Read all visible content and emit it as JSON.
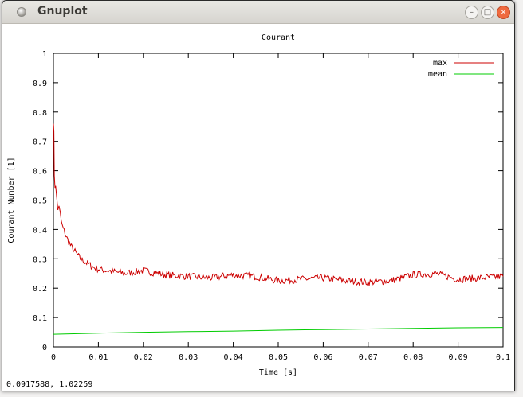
{
  "window": {
    "title": "Gnuplot"
  },
  "status": {
    "coordinates": "0.0917588,  1.02259"
  },
  "colors": {
    "max": "#cc0000",
    "mean": "#00cc00"
  },
  "chart_data": {
    "type": "line",
    "title": "Courant",
    "xlabel": "Time [s]",
    "ylabel": "Courant Number [1]",
    "xlim": [
      0,
      0.1
    ],
    "ylim": [
      0,
      1
    ],
    "xticks": [
      "0",
      "0.01",
      "0.02",
      "0.03",
      "0.04",
      "0.05",
      "0.06",
      "0.07",
      "0.08",
      "0.09",
      "0.1"
    ],
    "yticks": [
      "0",
      "0.1",
      "0.2",
      "0.3",
      "0.4",
      "0.5",
      "0.6",
      "0.7",
      "0.8",
      "0.9",
      "1"
    ],
    "legend_position": "top-right",
    "grid": false,
    "series": [
      {
        "name": "max",
        "x": [
          0,
          0.0002,
          0.0005,
          0.001,
          0.0015,
          0.002,
          0.003,
          0.004,
          0.005,
          0.006,
          0.007,
          0.008,
          0.009,
          0.01,
          0.012,
          0.014,
          0.016,
          0.018,
          0.02,
          0.025,
          0.03,
          0.035,
          0.04,
          0.045,
          0.05,
          0.055,
          0.06,
          0.065,
          0.07,
          0.075,
          0.08,
          0.085,
          0.09,
          0.095,
          0.1
        ],
        "y": [
          0.8,
          0.6,
          0.53,
          0.48,
          0.44,
          0.41,
          0.37,
          0.34,
          0.32,
          0.3,
          0.29,
          0.28,
          0.27,
          0.265,
          0.26,
          0.255,
          0.25,
          0.255,
          0.26,
          0.245,
          0.24,
          0.235,
          0.245,
          0.24,
          0.225,
          0.23,
          0.235,
          0.225,
          0.22,
          0.225,
          0.245,
          0.25,
          0.23,
          0.235,
          0.24
        ]
      },
      {
        "name": "mean",
        "x": [
          0,
          0.01,
          0.02,
          0.03,
          0.04,
          0.05,
          0.06,
          0.07,
          0.08,
          0.09,
          0.1
        ],
        "y": [
          0.043,
          0.047,
          0.05,
          0.052,
          0.054,
          0.057,
          0.059,
          0.061,
          0.063,
          0.065,
          0.066
        ]
      }
    ]
  }
}
